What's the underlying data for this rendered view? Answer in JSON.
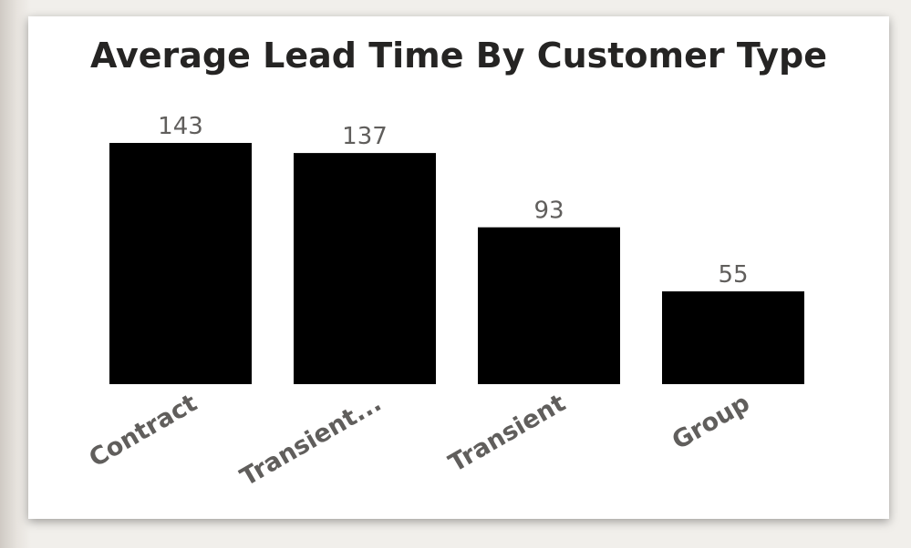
{
  "chart_data": {
    "type": "bar",
    "title": "Average Lead Time By Customer Type",
    "categories": [
      "Contract",
      "Transient...",
      "Transient",
      "Group"
    ],
    "values": [
      143,
      137,
      93,
      55
    ],
    "data_labels": [
      "143",
      "137",
      "93",
      "55"
    ],
    "xlabel": "",
    "ylabel": "",
    "ylim": [
      0,
      143
    ],
    "grid": false,
    "legend": "none",
    "bar_color": "#000000",
    "label_color": "#605e5c",
    "title_color": "#252423"
  }
}
